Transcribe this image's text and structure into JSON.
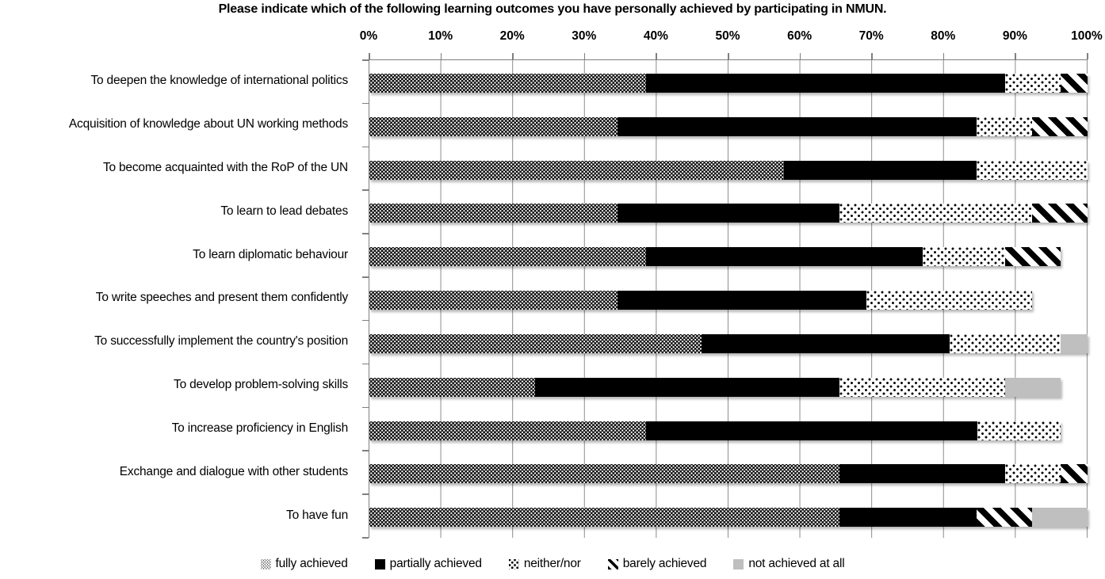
{
  "title": "Please indicate which of the following learning outcomes you have personally achieved by participating in NMUN.",
  "chart_data": {
    "type": "bar",
    "variant": "horizontal-stacked",
    "title": "Please indicate which of the following learning outcomes you have personally achieved by participating in NMUN.",
    "x_axis": {
      "min": 0,
      "max": 100,
      "tick_step": 10,
      "tick_labels": [
        "0%",
        "10%",
        "20%",
        "30%",
        "40%",
        "50%",
        "60%",
        "70%",
        "80%",
        "90%",
        "100%"
      ],
      "unit": "%",
      "position": "top"
    },
    "grid": true,
    "legend_position": "bottom",
    "categories": [
      "To deepen the knowledge of international politics",
      "Acquisition of knowledge about UN working methods",
      "To become acquainted with the RoP of the UN",
      "To learn to lead debates",
      "To learn diplomatic behaviour",
      "To write speeches and present them confidently",
      "To successfully implement the country's position",
      "To develop problem-solving skills",
      "To increase proficiency in English",
      "Exchange and dialogue with other students",
      "To have fun"
    ],
    "series": [
      {
        "name": "fully achieved",
        "pattern": "dense-white-dots-on-black",
        "values": [
          38.5,
          34.6,
          57.7,
          34.6,
          38.5,
          34.6,
          46.2,
          23.1,
          38.5,
          65.4,
          65.4
        ]
      },
      {
        "name": "partially achieved",
        "pattern": "solid-black",
        "values": [
          50.0,
          50.0,
          26.9,
          30.8,
          38.5,
          34.6,
          34.6,
          42.3,
          46.2,
          23.1,
          19.2
        ]
      },
      {
        "name": "neither/nor",
        "pattern": "sparse-black-dots-on-white",
        "values": [
          7.7,
          7.7,
          15.4,
          26.9,
          11.5,
          23.1,
          15.4,
          23.1,
          11.5,
          7.7,
          0
        ]
      },
      {
        "name": "barely achieved",
        "pattern": "black-diagonal-stripes",
        "values": [
          3.8,
          7.7,
          0,
          7.7,
          7.7,
          0,
          0,
          0,
          0,
          3.8,
          7.7
        ]
      },
      {
        "name": "not achieved at all",
        "pattern": "solid-gray",
        "values": [
          0,
          0,
          0,
          0,
          0,
          0,
          3.8,
          7.7,
          0,
          0,
          7.7
        ]
      }
    ]
  },
  "colors": {
    "series_black": "#000000",
    "series_gray": "#bfbfbf",
    "gridline": "#8c8c8c",
    "axis": "#7f7f7f",
    "background": "#ffffff",
    "text": "#000000"
  }
}
